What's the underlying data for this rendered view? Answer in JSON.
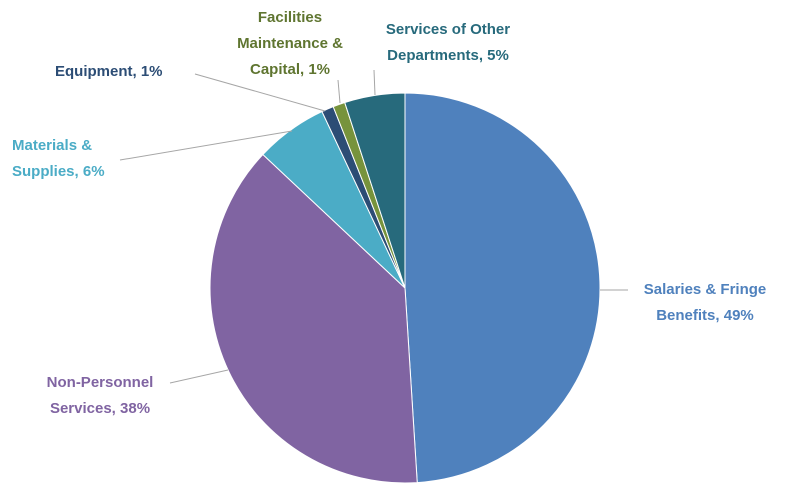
{
  "chart_data": {
    "type": "pie",
    "labels": [
      [
        "Salaries & Fringe",
        "Benefits, 49%"
      ],
      [
        "Non-Personnel",
        "Services, 38%"
      ],
      [
        "Materials &",
        "Supplies, 6%"
      ],
      [
        "Equipment, 1%"
      ],
      [
        "Facilities",
        "Maintenance &",
        "Capital, 1%"
      ],
      [
        "Services of Other",
        "Departments, 5%"
      ]
    ],
    "values": [
      49,
      38,
      6,
      1,
      1,
      5
    ],
    "colors": [
      "#4f81bd",
      "#8064a2",
      "#4bacc6",
      "#2c4d75",
      "#77933c",
      "#276a7c"
    ]
  }
}
